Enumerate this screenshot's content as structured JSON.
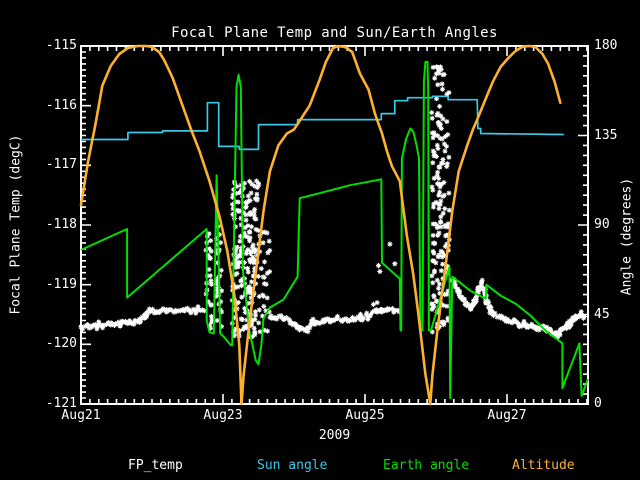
{
  "title": "Focal Plane Temp and Sun/Earth Angles",
  "x_axis": {
    "year_label": "2009",
    "tick_labels": [
      "Aug21",
      "Aug23",
      "Aug25",
      "Aug27"
    ],
    "tick_days": [
      21,
      23,
      25,
      27
    ],
    "minor_step_day": 0.125,
    "min_day": 21.0,
    "max_day": 28.14
  },
  "left_axis": {
    "label": "Focal Plane Temp (degC)",
    "min": -121,
    "max": -115,
    "tick_values": [
      -115,
      -116,
      -117,
      -118,
      -119,
      -120,
      -121
    ],
    "minor_step": 0.1
  },
  "right_axis": {
    "label": "Angle (degrees)",
    "min": 0,
    "max": 180,
    "tick_values": [
      180,
      135,
      90,
      45,
      0
    ],
    "minor_step": 5
  },
  "colors": {
    "background": "#000000",
    "foreground": "#FFFFFF",
    "sun": "#3BC8E8",
    "earth": "#00DF00",
    "altitude": "#FFB02E"
  },
  "legend": [
    {
      "label": "FP_temp",
      "color_key": "foreground"
    },
    {
      "label": "Sun angle",
      "color_key": "sun"
    },
    {
      "label": "Earth angle",
      "color_key": "earth"
    },
    {
      "label": "Altitude",
      "color_key": "altitude"
    }
  ],
  "chart_data": {
    "type": "line",
    "title": "Focal Plane Temp and Sun/Earth Angles",
    "x_unit": "day of August 2009",
    "x_range": [
      21.0,
      28.14
    ],
    "y_left": {
      "label": "Focal Plane Temp (degC)",
      "range": [
        -121,
        -115
      ]
    },
    "y_right": {
      "label": "Angle (degrees)",
      "range": [
        0,
        180
      ]
    },
    "series": [
      {
        "name": "FP_temp",
        "axis": "left",
        "style": "asterisk-scatter",
        "band_polylines": [
          [
            [
              21.0,
              -119.72
            ],
            [
              21.25,
              -119.69
            ],
            [
              21.54,
              -119.66
            ],
            [
              21.82,
              -119.6
            ],
            [
              21.9,
              -119.52
            ],
            [
              21.97,
              -119.44
            ],
            [
              22.24,
              -119.43
            ],
            [
              22.74,
              -119.42
            ]
          ],
          [
            [
              23.66,
              -119.52
            ],
            [
              23.87,
              -119.57
            ],
            [
              24.01,
              -119.65
            ],
            [
              24.08,
              -119.75
            ],
            [
              24.19,
              -119.76
            ],
            [
              24.29,
              -119.63
            ],
            [
              24.51,
              -119.6
            ],
            [
              24.93,
              -119.57
            ],
            [
              25.16,
              -119.45
            ],
            [
              25.3,
              -119.42
            ],
            [
              25.49,
              -119.45
            ]
          ],
          [
            [
              26.23,
              -118.9
            ],
            [
              26.34,
              -119.18
            ],
            [
              26.43,
              -119.32
            ],
            [
              26.48,
              -119.4
            ],
            [
              26.54,
              -119.32
            ],
            [
              26.6,
              -119.07
            ],
            [
              26.64,
              -118.98
            ],
            [
              26.68,
              -119.1
            ],
            [
              26.72,
              -119.27
            ],
            [
              26.77,
              -119.47
            ],
            [
              26.91,
              -119.55
            ],
            [
              26.98,
              -119.58
            ],
            [
              27.08,
              -119.62
            ],
            [
              27.16,
              -119.67
            ],
            [
              27.26,
              -119.7
            ],
            [
              27.37,
              -119.72
            ],
            [
              27.47,
              -119.73
            ],
            [
              27.56,
              -119.72
            ],
            [
              27.64,
              -119.8
            ],
            [
              27.7,
              -119.83
            ],
            [
              27.76,
              -119.78
            ],
            [
              27.83,
              -119.7
            ],
            [
              27.9,
              -119.62
            ],
            [
              27.97,
              -119.55
            ],
            [
              28.03,
              -119.52
            ],
            [
              28.07,
              -119.53
            ]
          ]
        ],
        "streaks": [
          {
            "day0": 22.76,
            "day1": 22.85,
            "temp_hi": -117.9,
            "temp_lo": -119.8,
            "n": 26
          },
          {
            "day0": 22.9,
            "day1": 22.99,
            "temp_hi": -117.85,
            "temp_lo": -119.8,
            "n": 30
          },
          {
            "day0": 23.13,
            "day1": 23.31,
            "temp_hi": -117.25,
            "temp_lo": -119.9,
            "n": 95
          },
          {
            "day0": 23.31,
            "day1": 23.52,
            "temp_hi": -117.25,
            "temp_lo": -119.88,
            "n": 110
          },
          {
            "day0": 23.52,
            "day1": 23.66,
            "temp_hi": -118.1,
            "temp_lo": -119.8,
            "n": 26
          },
          {
            "day0": 25.93,
            "day1": 26.19,
            "temp_hi": -115.32,
            "temp_lo": -119.8,
            "n": 165
          }
        ],
        "outliers": [
          [
            25.19,
            -118.68
          ],
          [
            25.21,
            -118.78
          ],
          [
            25.35,
            -118.32
          ],
          [
            25.42,
            -118.65
          ],
          [
            25.17,
            -119.3
          ],
          [
            25.12,
            -119.33
          ]
        ]
      },
      {
        "name": "Sun angle",
        "axis": "right",
        "style": "step-line",
        "points": [
          [
            21.0,
            133
          ],
          [
            21.66,
            133
          ],
          [
            21.66,
            136.5
          ],
          [
            22.15,
            136.5
          ],
          [
            22.15,
            137.3
          ],
          [
            22.78,
            137.3
          ],
          [
            22.78,
            151.5
          ],
          [
            22.94,
            151.5
          ],
          [
            22.94,
            129.5
          ],
          [
            23.23,
            129.5
          ],
          [
            23.23,
            128
          ],
          [
            23.5,
            128
          ],
          [
            23.5,
            140.5
          ],
          [
            24.05,
            140.5
          ],
          [
            24.05,
            143
          ],
          [
            25.23,
            143
          ],
          [
            25.23,
            146
          ],
          [
            25.42,
            146
          ],
          [
            25.42,
            152.5
          ],
          [
            25.6,
            152.5
          ],
          [
            25.6,
            154
          ],
          [
            25.95,
            154
          ],
          [
            25.95,
            154.7
          ],
          [
            26.17,
            154.7
          ],
          [
            26.17,
            153
          ],
          [
            26.58,
            153
          ],
          [
            26.59,
            138.5
          ],
          [
            26.63,
            138.5
          ],
          [
            26.63,
            136
          ],
          [
            27.8,
            135.5
          ]
        ]
      },
      {
        "name": "Earth angle",
        "axis": "right",
        "style": "line",
        "points": [
          [
            21.0,
            77.5
          ],
          [
            21.65,
            88
          ],
          [
            21.65,
            53.5
          ],
          [
            22.77,
            88
          ],
          [
            22.77,
            42
          ],
          [
            22.81,
            36
          ],
          [
            22.87,
            35.5
          ],
          [
            22.91,
            115
          ],
          [
            22.96,
            35.5
          ],
          [
            23.02,
            33.5
          ],
          [
            23.11,
            29.5
          ],
          [
            23.13,
            29.5
          ],
          [
            23.19,
            159.5
          ],
          [
            23.22,
            165.5
          ],
          [
            23.25,
            159.5
          ],
          [
            23.28,
            67
          ],
          [
            23.37,
            37
          ],
          [
            23.46,
            22
          ],
          [
            23.5,
            20
          ],
          [
            23.54,
            29.5
          ],
          [
            23.57,
            43
          ],
          [
            23.66,
            48.5
          ],
          [
            23.85,
            52.5
          ],
          [
            24.05,
            64
          ],
          [
            24.08,
            103.5
          ],
          [
            24.36,
            106
          ],
          [
            24.79,
            110
          ],
          [
            25.23,
            113
          ],
          [
            25.24,
            71
          ],
          [
            25.49,
            63
          ],
          [
            25.5,
            37
          ],
          [
            25.51,
            37
          ],
          [
            25.52,
            123.5
          ],
          [
            25.58,
            133.5
          ],
          [
            25.64,
            138.5
          ],
          [
            25.68,
            137
          ],
          [
            25.73,
            129.5
          ],
          [
            25.76,
            123.5
          ],
          [
            25.78,
            37
          ],
          [
            25.81,
            37
          ],
          [
            25.83,
            162
          ],
          [
            25.85,
            172
          ],
          [
            25.88,
            172
          ],
          [
            25.89,
            157
          ],
          [
            25.9,
            37
          ],
          [
            25.93,
            37
          ],
          [
            26.19,
            69
          ],
          [
            26.2,
            3
          ],
          [
            26.23,
            64
          ],
          [
            26.48,
            57
          ],
          [
            26.7,
            53
          ],
          [
            26.71,
            60
          ],
          [
            26.91,
            54.5
          ],
          [
            27.12,
            50.5
          ],
          [
            27.33,
            44.5
          ],
          [
            27.54,
            37
          ],
          [
            27.78,
            30.5
          ],
          [
            27.78,
            8
          ],
          [
            28.02,
            30.5
          ],
          [
            28.05,
            4
          ],
          [
            28.14,
            12.5
          ]
        ]
      },
      {
        "name": "Altitude",
        "axis": "right",
        "style": "line",
        "points": [
          [
            21.0,
            100
          ],
          [
            21.1,
            122
          ],
          [
            21.2,
            140
          ],
          [
            21.3,
            160
          ],
          [
            21.42,
            170
          ],
          [
            21.54,
            176
          ],
          [
            21.66,
            179
          ],
          [
            21.8,
            180
          ],
          [
            21.92,
            180
          ],
          [
            22.0,
            179.5
          ],
          [
            22.1,
            177
          ],
          [
            22.17,
            173
          ],
          [
            22.29,
            164
          ],
          [
            22.39,
            154
          ],
          [
            22.47,
            146
          ],
          [
            22.56,
            137
          ],
          [
            22.67,
            127
          ],
          [
            22.81,
            112
          ],
          [
            22.95,
            94.5
          ],
          [
            23.06,
            77
          ],
          [
            23.16,
            54.5
          ],
          [
            23.23,
            29.5
          ],
          [
            23.26,
            0
          ],
          [
            23.29,
            14.5
          ],
          [
            23.36,
            37
          ],
          [
            23.43,
            57
          ],
          [
            23.5,
            77
          ],
          [
            23.57,
            97
          ],
          [
            23.66,
            117
          ],
          [
            23.78,
            130
          ],
          [
            23.9,
            136
          ],
          [
            24.0,
            138
          ],
          [
            24.11,
            144
          ],
          [
            24.22,
            150
          ],
          [
            24.36,
            163
          ],
          [
            24.45,
            172
          ],
          [
            24.55,
            179
          ],
          [
            24.62,
            180
          ],
          [
            24.72,
            179.5
          ],
          [
            24.82,
            177
          ],
          [
            24.93,
            166
          ],
          [
            25.05,
            158
          ],
          [
            25.14,
            146
          ],
          [
            25.24,
            136
          ],
          [
            25.31,
            127
          ],
          [
            25.38,
            119.5
          ],
          [
            25.49,
            112
          ],
          [
            25.59,
            84.5
          ],
          [
            25.68,
            65
          ],
          [
            25.75,
            45.5
          ],
          [
            25.85,
            15
          ],
          [
            25.92,
            0
          ],
          [
            25.95,
            14.5
          ],
          [
            26.02,
            37
          ],
          [
            26.09,
            57
          ],
          [
            26.16,
            77
          ],
          [
            26.23,
            97
          ],
          [
            26.32,
            117
          ],
          [
            26.44,
            130
          ],
          [
            26.52,
            138
          ],
          [
            26.58,
            143
          ],
          [
            26.7,
            153.5
          ],
          [
            26.8,
            162
          ],
          [
            26.91,
            169.5
          ],
          [
            27.02,
            174
          ],
          [
            27.12,
            177.5
          ],
          [
            27.23,
            179.8
          ],
          [
            27.32,
            180
          ],
          [
            27.4,
            179.5
          ],
          [
            27.5,
            176
          ],
          [
            27.58,
            171
          ],
          [
            27.67,
            162
          ],
          [
            27.75,
            151.5
          ]
        ]
      }
    ]
  }
}
